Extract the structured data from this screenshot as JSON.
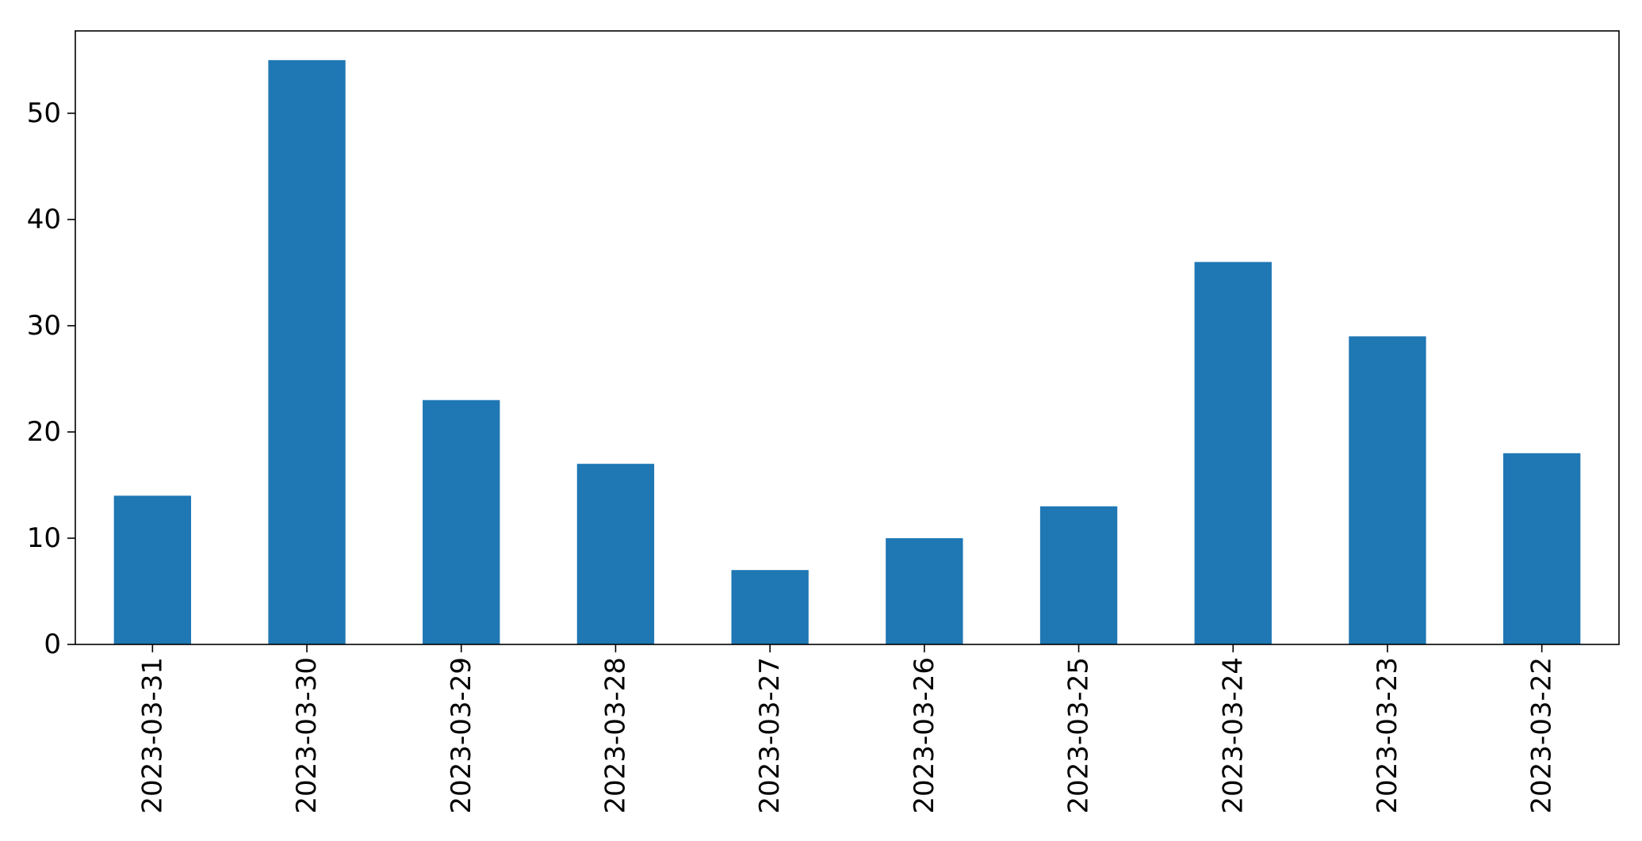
{
  "chart_data": {
    "type": "bar",
    "title": "",
    "xlabel": "",
    "ylabel": "",
    "categories": [
      "2023-03-31",
      "2023-03-30",
      "2023-03-29",
      "2023-03-28",
      "2023-03-27",
      "2023-03-26",
      "2023-03-25",
      "2023-03-24",
      "2023-03-23",
      "2023-03-22"
    ],
    "values": [
      14,
      55,
      23,
      17,
      7,
      10,
      13,
      36,
      29,
      18
    ],
    "ylim": [
      0,
      57.75
    ],
    "yticks": [
      0,
      10,
      20,
      30,
      40,
      50
    ],
    "bar_color": "#1f77b4",
    "grid": false,
    "legend": "none"
  }
}
